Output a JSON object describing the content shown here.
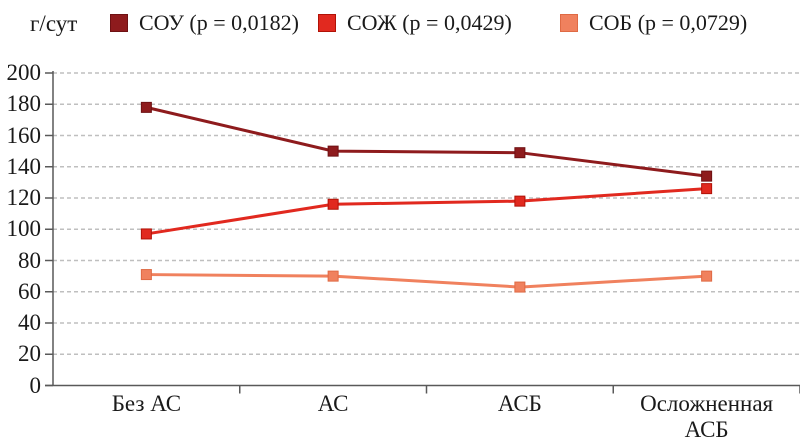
{
  "chart_data": {
    "type": "line",
    "title": "",
    "xlabel": "",
    "ylabel": "г/сут",
    "ylim": [
      0,
      200
    ],
    "yticks": [
      0,
      20,
      40,
      60,
      80,
      100,
      120,
      140,
      160,
      180,
      200
    ],
    "grid": "horizontal-dashed",
    "legend_position": "top",
    "categories": [
      "Без АС",
      "АС",
      "АСБ",
      "Осложненная АСБ"
    ],
    "series": [
      {
        "name": "СОУ (p = 0,0182)",
        "short_name": "СОУ",
        "p_value": "0,0182",
        "color": "#8E1B1D",
        "border": "#6E1113",
        "marker": "square",
        "values": [
          178,
          150,
          149,
          134
        ]
      },
      {
        "name": "СОЖ (p = 0,0429)",
        "short_name": "СОЖ",
        "p_value": "0,0429",
        "color": "#E1291F",
        "border": "#B11207",
        "marker": "square",
        "values": [
          97,
          116,
          118,
          126
        ]
      },
      {
        "name": "СОБ (p = 0,0729)",
        "short_name": "СОБ",
        "p_value": "0,0729",
        "color": "#F0815E",
        "border": "#DF6A44",
        "marker": "square",
        "values": [
          71,
          70,
          63,
          70
        ]
      }
    ]
  },
  "colors": {
    "background": "#FFFFFF",
    "axis": "#595959",
    "grid": "#BFBFBF",
    "text": "#1A1A1A"
  }
}
